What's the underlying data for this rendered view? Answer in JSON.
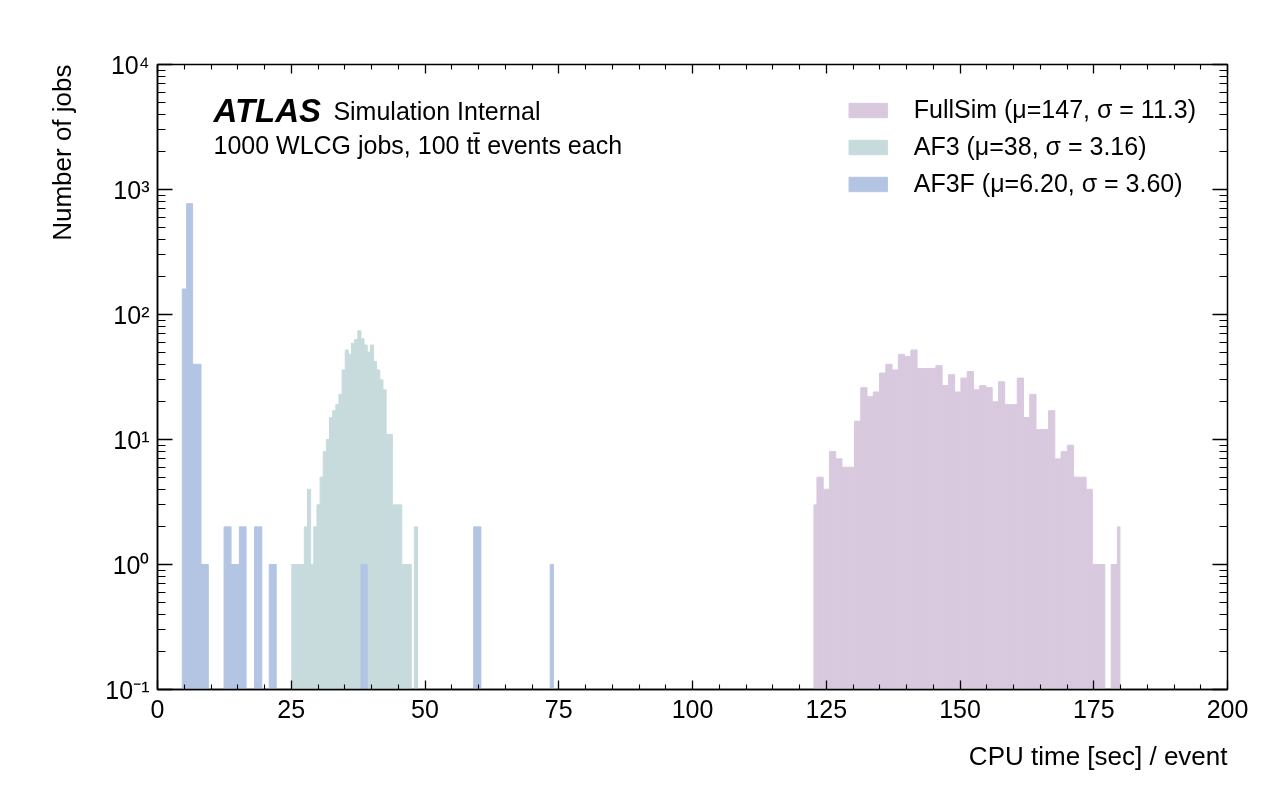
{
  "chart_data": {
    "type": "histogram",
    "xlabel": "CPU time [sec] / event",
    "ylabel": "Number of jobs",
    "annotations": [
      "ATLAS",
      "Simulation Internal",
      "1000 WLCG jobs, 100 tt̄ events each"
    ],
    "bins": [
      4.63,
      5.44,
      6.56,
      8.13,
      9.5,
      12.44,
      13.75,
      15.31,
      16.56,
      18.13,
      19.5,
      20.88,
      22.19,
      25.1,
      25.69,
      26.28,
      26.86,
      27.45,
      28.04,
      28.63,
      29.21,
      29.8,
      30.39,
      30.98,
      31.56,
      32.15,
      32.74,
      33.33,
      33.91,
      34.5,
      35.09,
      35.68,
      36.26,
      36.85,
      37.44,
      38.03,
      38.61,
      39.2,
      39.79,
      40.38,
      40.96,
      41.55,
      42.14,
      42.73,
      43.31,
      43.9,
      44.49,
      45.08,
      45.66,
      46.25,
      46.84,
      47.43,
      48.01,
      48.6,
      59.1,
      60.45,
      73.4,
      74.0,
      122.7,
      123.26,
      124.43,
      125.6,
      126.77,
      127.94,
      129.11,
      130.28,
      131.45,
      132.62,
      133.79,
      134.96,
      136.13,
      137.3,
      138.47,
      139.64,
      140.81,
      141.98,
      143.15,
      144.32,
      145.49,
      146.66,
      147.83,
      149.0,
      150.17,
      151.34,
      152.51,
      153.68,
      154.85,
      156.02,
      157.19,
      158.36,
      159.53,
      160.7,
      161.87,
      163.04,
      164.21,
      165.38,
      166.55,
      167.72,
      168.89,
      170.06,
      171.23,
      172.4,
      173.57,
      174.74,
      175.91,
      177.08,
      178.25,
      179.42,
      179.9
    ],
    "series": [
      {
        "name": "FullSim (μ=147, σ = 11.3)",
        "color": "#d9c9df",
        "values": [
          null,
          null,
          null,
          null,
          null,
          null,
          null,
          null,
          null,
          null,
          null,
          null,
          null,
          null,
          null,
          null,
          null,
          null,
          null,
          null,
          null,
          null,
          null,
          null,
          null,
          null,
          null,
          null,
          null,
          null,
          null,
          null,
          null,
          null,
          null,
          null,
          null,
          null,
          null,
          null,
          null,
          null,
          null,
          null,
          null,
          null,
          null,
          null,
          null,
          null,
          null,
          null,
          null,
          null,
          null,
          null,
          null,
          null,
          3,
          5,
          4,
          8,
          7,
          6,
          6,
          14,
          26,
          22,
          24,
          34,
          40,
          36,
          48,
          46,
          52,
          37,
          37,
          37,
          39,
          27,
          33,
          24,
          31,
          35,
          25,
          27,
          26,
          20,
          29,
          19,
          19,
          31,
          15,
          23,
          12,
          12,
          17,
          7,
          8,
          9,
          5,
          5,
          4,
          1,
          1,
          null,
          1,
          2
        ]
      },
      {
        "name": "AF3 (μ=38, σ = 3.16)",
        "color": "#c7dbdd",
        "values": [
          null,
          null,
          null,
          null,
          null,
          null,
          null,
          null,
          null,
          null,
          null,
          null,
          null,
          1,
          1,
          1,
          1,
          2,
          4,
          1,
          2,
          3,
          5,
          8,
          10,
          15,
          17,
          19,
          23,
          36,
          52,
          48,
          59,
          63,
          74,
          64,
          57,
          50,
          57,
          42,
          36,
          30,
          25,
          11,
          11,
          3,
          3,
          3,
          1,
          1,
          1,
          null,
          2,
          null,
          null,
          null,
          null,
          null,
          null,
          null,
          null,
          null,
          null,
          null,
          null,
          null,
          null,
          null,
          null,
          null,
          null,
          null,
          null,
          null,
          null,
          null,
          null,
          null,
          null,
          null,
          null,
          null,
          null,
          null,
          null,
          null,
          null,
          null,
          null,
          null,
          null,
          null,
          null,
          null,
          null,
          null,
          null,
          null,
          null,
          null,
          null,
          null,
          null,
          null,
          null,
          null,
          null,
          null
        ]
      },
      {
        "name": "AF3F (μ=6.20, σ = 3.60)",
        "color": "#b4c5e4",
        "values": [
          160,
          770,
          40,
          1,
          null,
          2,
          1,
          2,
          null,
          2,
          null,
          1,
          null,
          null,
          null,
          null,
          null,
          null,
          null,
          null,
          null,
          null,
          null,
          null,
          null,
          null,
          null,
          null,
          null,
          null,
          null,
          null,
          null,
          null,
          null,
          1,
          1,
          null,
          null,
          null,
          null,
          null,
          null,
          null,
          null,
          null,
          null,
          null,
          null,
          null,
          null,
          null,
          null,
          null,
          2,
          null,
          1,
          null,
          null,
          null,
          null,
          null,
          null,
          null,
          null,
          null,
          null,
          null,
          null,
          null,
          null,
          null,
          null,
          null,
          null,
          null,
          null,
          null,
          null,
          null,
          null,
          null,
          null,
          null,
          null,
          null,
          null,
          null,
          null,
          null,
          null,
          null,
          null,
          null,
          null,
          null,
          null,
          null,
          null,
          null,
          null,
          null,
          null,
          null,
          null,
          null,
          null,
          null
        ]
      }
    ],
    "xlim": [
      0,
      200
    ],
    "xticks": [
      0,
      25,
      50,
      75,
      100,
      125,
      150,
      175,
      200
    ],
    "ylim": [
      0.1,
      10000
    ],
    "yticks": [
      {
        "value": 0.1,
        "label": "10⁻¹"
      },
      {
        "value": 1,
        "label": "10⁰"
      },
      {
        "value": 10,
        "label": "10¹"
      },
      {
        "value": 100,
        "label": "10²"
      },
      {
        "value": 1000,
        "label": "10³"
      },
      {
        "value": 10000,
        "label": "10⁴"
      }
    ],
    "log": true,
    "legend": "top right"
  }
}
